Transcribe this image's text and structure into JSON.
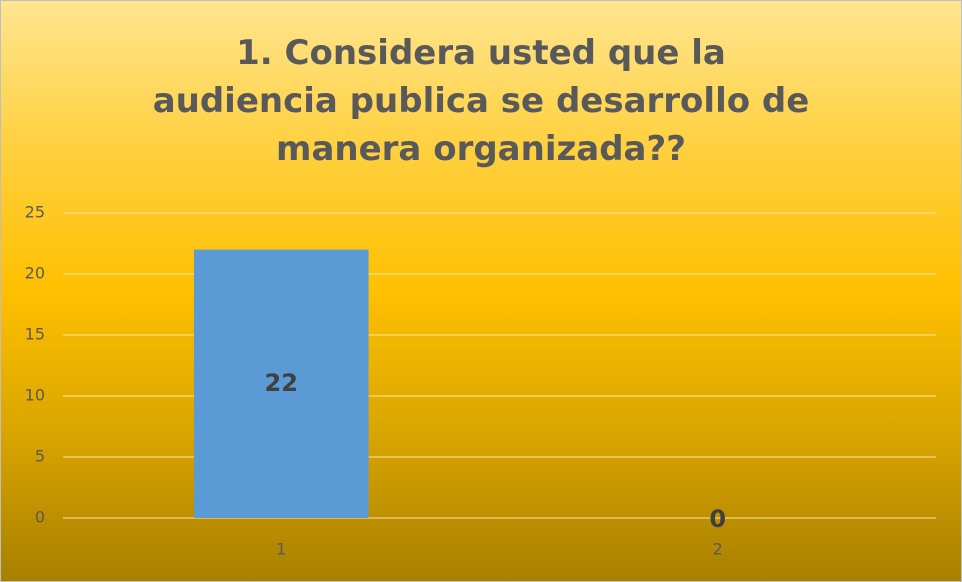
{
  "chart_data": {
    "type": "bar",
    "title": "1. Considera usted que la audiencia publica se desarrollo de manera organizada??",
    "categories": [
      "1",
      "2"
    ],
    "values": [
      22,
      0
    ],
    "color": "#5b9bd5",
    "ylim": [
      0,
      25
    ],
    "yticks": [
      0,
      5,
      10,
      15,
      20,
      25
    ],
    "grid": true,
    "data_labels": true
  }
}
